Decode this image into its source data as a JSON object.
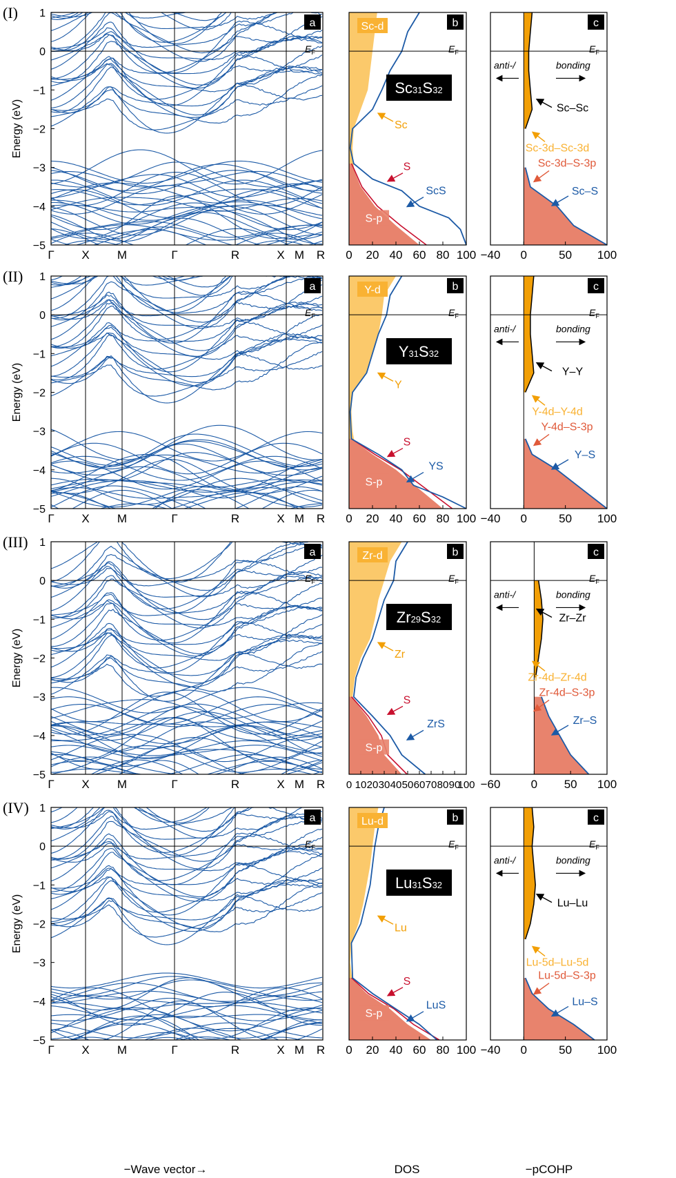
{
  "figure": {
    "x_axis_title_bands": "−Wave vector→",
    "x_axis_title_dos": "DOS",
    "x_axis_title_cohp": "−pCOHP",
    "y_axis_title": "Energy (eV)"
  },
  "colors": {
    "band": "#1c5aa6",
    "total_dos": "#1c5aa6",
    "metal_fill": "#f9b233",
    "metal_fill_light": "#fbc96b",
    "s_fill": "#e8836d",
    "s_line": "#c8102e",
    "bonding_fill": "#f29f05",
    "cohp_total": "#1c5aa6",
    "black": "#000000",
    "label_box": "#000000"
  },
  "panels": [
    {
      "roman": "(I)",
      "formula_base": "Sc",
      "formula_sub1": "31",
      "formula_mid": "S",
      "formula_sub2": "32",
      "metal": "Sc",
      "ef_label": "E",
      "ef_sub": "F",
      "dos_labels": {
        "d": "Sc-d",
        "p": "S-p",
        "metal": "Sc",
        "s": "S",
        "total": "ScS"
      },
      "cohp_labels": {
        "anti": "anti-/",
        "bonding": "bonding",
        "mm": "Sc–Sc",
        "dd": "Sc-3d–Sc-3d",
        "dp": "Sc-3d–S-3p",
        "ms": "Sc–S"
      },
      "letters": {
        "a": "a",
        "b": "b",
        "c": "c"
      },
      "kpoints": [
        "Γ",
        "X",
        "M",
        "Γ",
        "R",
        "X",
        "M",
        "R"
      ],
      "y_ticks": [
        "1",
        "0",
        "−1",
        "−2",
        "−3",
        "−4",
        "−5"
      ],
      "dos_ticks": [
        "0",
        "20",
        "40",
        "60",
        "80",
        "100"
      ],
      "cohp_ticks": [
        "−40",
        "0",
        "50",
        "100"
      ]
    },
    {
      "roman": "(II)",
      "formula_base": "Y",
      "formula_sub1": "31",
      "formula_mid": "S",
      "formula_sub2": "32",
      "metal": "Y",
      "ef_label": "E",
      "ef_sub": "F",
      "dos_labels": {
        "d": "Y-d",
        "p": "S-p",
        "metal": "Y",
        "s": "S",
        "total": "YS"
      },
      "cohp_labels": {
        "anti": "anti-/",
        "bonding": "bonding",
        "mm": "Y–Y",
        "dd": "Y-4d–Y-4d",
        "dp": "Y-4d–S-3p",
        "ms": "Y–S"
      },
      "letters": {
        "a": "a",
        "b": "b",
        "c": "c"
      },
      "kpoints": [
        "Γ",
        "X",
        "M",
        "Γ",
        "R",
        "X",
        "M",
        "R"
      ],
      "y_ticks": [
        "1",
        "0",
        "−1",
        "−2",
        "−3",
        "−4",
        "−5"
      ],
      "dos_ticks": [
        "0",
        "20",
        "40",
        "60",
        "80",
        "100"
      ],
      "cohp_ticks": [
        "−40",
        "0",
        "50",
        "100"
      ]
    },
    {
      "roman": "(III)",
      "formula_base": "Zr",
      "formula_sub1": "29",
      "formula_mid": "S",
      "formula_sub2": "32",
      "metal": "Zr",
      "ef_label": "E",
      "ef_sub": "F",
      "dos_labels": {
        "d": "Zr-d",
        "p": "S-p",
        "metal": "Zr",
        "s": "S",
        "total": "ZrS"
      },
      "cohp_labels": {
        "anti": "anti-/",
        "bonding": "bonding",
        "mm": "Zr–Zr",
        "dd": "Zr-4d–Zr-4d",
        "dp": "Zr-4d–S-3p",
        "ms": "Zr–S"
      },
      "letters": {
        "a": "a",
        "b": "b",
        "c": "c"
      },
      "kpoints": [
        "Γ",
        "X",
        "M",
        "Γ",
        "R",
        "X",
        "M",
        "R"
      ],
      "y_ticks": [
        "1",
        "0",
        "−1",
        "−2",
        "−3",
        "−4",
        "−5"
      ],
      "dos_ticks": [
        "0",
        "10",
        "20",
        "30",
        "40",
        "50",
        "60",
        "70",
        "80",
        "90",
        "100"
      ],
      "cohp_ticks": [
        "−60",
        "0",
        "50",
        "100"
      ]
    },
    {
      "roman": "(IV)",
      "formula_base": "Lu",
      "formula_sub1": "31",
      "formula_mid": "S",
      "formula_sub2": "32",
      "metal": "Lu",
      "ef_label": "E",
      "ef_sub": "F",
      "dos_labels": {
        "d": "Lu-d",
        "p": "S-p",
        "metal": "Lu",
        "s": "S",
        "total": "LuS"
      },
      "cohp_labels": {
        "anti": "anti-/",
        "bonding": "bonding",
        "mm": "Lu–Lu",
        "dd": "Lu-5d–Lu-5d",
        "dp": "Lu-5d–S-3p",
        "ms": "Lu–S"
      },
      "letters": {
        "a": "a",
        "b": "b",
        "c": "c"
      },
      "kpoints": [
        "Γ",
        "X",
        "M",
        "Γ",
        "R",
        "X",
        "M",
        "R"
      ],
      "y_ticks": [
        "1",
        "0",
        "−1",
        "−2",
        "−3",
        "−4",
        "−5"
      ],
      "dos_ticks": [
        "0",
        "20",
        "40",
        "60",
        "80",
        "100"
      ],
      "cohp_ticks": [
        "−40",
        "0",
        "50",
        "100"
      ]
    }
  ],
  "chart_data": [
    {
      "type": "line",
      "subplot": "I-a band structure",
      "xlabel": "−Wave vector→",
      "ylabel": "Energy (eV)",
      "ylim": [
        -5,
        1
      ],
      "categories": [
        "Γ",
        "X",
        "M",
        "Γ",
        "R",
        "X",
        "M",
        "R"
      ],
      "valence_band_top": -2.9,
      "conduction_band_minimum_at_gamma": -2.0
    },
    {
      "type": "area",
      "subplot": "I-b DOS",
      "xlabel": "DOS",
      "xlim": [
        0,
        100
      ],
      "ylim": [
        -5,
        1
      ],
      "series": [
        {
          "name": "Sc-d",
          "y": [
            1,
            0.5,
            0,
            -0.5,
            -1,
            -1.5,
            -2,
            -2.5,
            -3,
            -3.5,
            -4,
            -4.5,
            -5
          ],
          "values": [
            24,
            22,
            20,
            18,
            16,
            10,
            4,
            3,
            4,
            8,
            12,
            16,
            20
          ]
        },
        {
          "name": "S-p",
          "y": [
            -2.9,
            -3.5,
            -4,
            -4.5,
            -5
          ],
          "values": [
            2,
            10,
            22,
            40,
            60
          ]
        },
        {
          "name": "ScS",
          "y": [
            1,
            0.5,
            0,
            -0.5,
            -1,
            -1.5,
            -2,
            -2.5,
            -2.9,
            -3.3,
            -3.6,
            -4,
            -4.3,
            -4.6,
            -5
          ],
          "values": [
            60,
            50,
            45,
            35,
            28,
            20,
            3,
            1,
            4,
            20,
            45,
            60,
            85,
            95,
            100
          ]
        }
      ]
    },
    {
      "type": "area",
      "subplot": "I-c pCOHP",
      "xlabel": "−pCOHP",
      "xlim": [
        -40,
        100
      ],
      "ylim": [
        -5,
        1
      ],
      "series": [
        {
          "name": "Sc–Sc",
          "y": [
            1,
            0.5,
            0,
            -0.5,
            -1,
            -1.5,
            -2
          ],
          "values": [
            10,
            8,
            6,
            6,
            8,
            10,
            2
          ]
        },
        {
          "name": "Sc–S",
          "y": [
            -3,
            -3.5,
            -4,
            -4.5,
            -5
          ],
          "values": [
            2,
            8,
            40,
            60,
            100
          ]
        }
      ]
    },
    {
      "type": "line",
      "subplot": "II-a band structure",
      "xlabel": "−Wave vector→",
      "ylabel": "Energy (eV)",
      "ylim": [
        -5,
        1
      ],
      "categories": [
        "Γ",
        "X",
        "M",
        "Γ",
        "R",
        "X",
        "M",
        "R"
      ],
      "valence_band_top": -3.2,
      "conduction_band_minimum_at_gamma": -2.1
    },
    {
      "type": "area",
      "subplot": "II-b DOS",
      "xlabel": "DOS",
      "xlim": [
        0,
        100
      ],
      "ylim": [
        -5,
        1
      ],
      "series": [
        {
          "name": "Y-d",
          "y": [
            1,
            0.5,
            0,
            -0.5,
            -1,
            -1.5,
            -2,
            -2.5,
            -3,
            -3.5,
            -4,
            -4.5,
            -5
          ],
          "values": [
            40,
            30,
            28,
            25,
            20,
            15,
            3,
            2,
            3,
            6,
            10,
            14,
            18
          ]
        },
        {
          "name": "S-p",
          "y": [
            -3.2,
            -3.6,
            -4,
            -4.5,
            -5
          ],
          "values": [
            2,
            20,
            40,
            60,
            80
          ]
        },
        {
          "name": "YS",
          "y": [
            1,
            0.5,
            0,
            -0.5,
            -1,
            -1.5,
            -2,
            -2.5,
            -3.2,
            -3.6,
            -4,
            -4.4,
            -4.7,
            -5
          ],
          "values": [
            45,
            35,
            32,
            25,
            20,
            15,
            3,
            1,
            2,
            25,
            45,
            55,
            80,
            100
          ]
        }
      ]
    },
    {
      "type": "area",
      "subplot": "II-c pCOHP",
      "xlabel": "−pCOHP",
      "xlim": [
        -40,
        100
      ],
      "ylim": [
        -5,
        1
      ],
      "series": [
        {
          "name": "Y–Y",
          "y": [
            1,
            0.5,
            0,
            -0.5,
            -1,
            -1.5,
            -2
          ],
          "values": [
            12,
            10,
            8,
            8,
            10,
            12,
            2
          ]
        },
        {
          "name": "Y–S",
          "y": [
            -3.2,
            -3.6,
            -4,
            -4.5,
            -5
          ],
          "values": [
            2,
            10,
            40,
            70,
            100
          ]
        }
      ]
    },
    {
      "type": "line",
      "subplot": "III-a band structure",
      "xlabel": "−Wave vector→",
      "ylabel": "Energy (eV)",
      "ylim": [
        -5,
        1
      ],
      "categories": [
        "Γ",
        "X",
        "M",
        "Γ",
        "R",
        "X",
        "M",
        "R"
      ],
      "valence_band_top": -3.0,
      "conduction_band_minimum_at_gamma": -3.0
    },
    {
      "type": "area",
      "subplot": "III-b DOS",
      "xlabel": "DOS",
      "xlim": [
        0,
        100
      ],
      "ylim": [
        -5,
        1
      ],
      "series": [
        {
          "name": "Zr-d",
          "y": [
            1,
            0.5,
            0,
            -0.5,
            -1,
            -1.5,
            -2,
            -2.5,
            -3,
            -3.5,
            -4,
            -4.5,
            -5
          ],
          "values": [
            45,
            35,
            30,
            25,
            22,
            18,
            10,
            5,
            3,
            5,
            8,
            10,
            14
          ]
        },
        {
          "name": "S-p",
          "y": [
            -3,
            -3.5,
            -4,
            -4.5,
            -5
          ],
          "values": [
            2,
            15,
            25,
            30,
            45
          ]
        },
        {
          "name": "ZrS",
          "y": [
            1,
            0.5,
            0,
            -0.5,
            -1,
            -1.5,
            -2,
            -2.5,
            -3,
            -3.5,
            -4,
            -4.5,
            -5
          ],
          "values": [
            50,
            40,
            38,
            30,
            25,
            20,
            12,
            6,
            4,
            20,
            35,
            45,
            65
          ]
        }
      ]
    },
    {
      "type": "area",
      "subplot": "III-c pCOHP",
      "xlabel": "−pCOHP",
      "xlim": [
        -60,
        100
      ],
      "ylim": [
        -5,
        1
      ],
      "series": [
        {
          "name": "Zr–Zr",
          "y": [
            0,
            -0.5,
            -1,
            -1.5,
            -2,
            -2.5
          ],
          "values": [
            6,
            10,
            12,
            10,
            6,
            2
          ]
        },
        {
          "name": "Zr–S",
          "y": [
            -3,
            -3.5,
            -4,
            -4.5,
            -5
          ],
          "values": [
            10,
            20,
            35,
            50,
            75
          ]
        }
      ]
    },
    {
      "type": "line",
      "subplot": "IV-a band structure",
      "xlabel": "−Wave vector→",
      "ylabel": "Energy (eV)",
      "ylim": [
        -5,
        1
      ],
      "categories": [
        "Γ",
        "X",
        "M",
        "Γ",
        "R",
        "X",
        "M",
        "R"
      ],
      "valence_band_top": -3.4,
      "conduction_band_minimum_at_gamma": -2.4
    },
    {
      "type": "area",
      "subplot": "IV-b DOS",
      "xlabel": "DOS",
      "xlim": [
        0,
        100
      ],
      "ylim": [
        -5,
        1
      ],
      "series": [
        {
          "name": "Lu-d",
          "y": [
            1,
            0.5,
            0,
            -0.5,
            -1,
            -1.5,
            -2,
            -2.5,
            -3,
            -3.5,
            -4,
            -4.5,
            -5
          ],
          "values": [
            25,
            22,
            20,
            18,
            15,
            12,
            8,
            2,
            1,
            3,
            8,
            12,
            16
          ]
        },
        {
          "name": "S-p",
          "y": [
            -3.4,
            -3.8,
            -4.2,
            -4.6,
            -5
          ],
          "values": [
            2,
            15,
            35,
            50,
            70
          ]
        },
        {
          "name": "LuS",
          "y": [
            1,
            0.5,
            0,
            -0.5,
            -1,
            -1.5,
            -2,
            -2.5,
            -3.4,
            -3.8,
            -4.2,
            -4.6,
            -5
          ],
          "values": [
            30,
            25,
            22,
            20,
            18,
            14,
            10,
            2,
            3,
            20,
            40,
            60,
            75
          ]
        }
      ]
    },
    {
      "type": "area",
      "subplot": "IV-c pCOHP",
      "xlabel": "−pCOHP",
      "xlim": [
        -40,
        100
      ],
      "ylim": [
        -5,
        1
      ],
      "series": [
        {
          "name": "Lu–Lu",
          "y": [
            1,
            0.5,
            0,
            -0.5,
            -1,
            -1.5,
            -2,
            -2.4
          ],
          "values": [
            10,
            12,
            10,
            12,
            14,
            12,
            8,
            2
          ]
        },
        {
          "name": "Lu–S",
          "y": [
            -3.4,
            -3.8,
            -4.2,
            -4.6,
            -5
          ],
          "values": [
            2,
            10,
            30,
            60,
            85
          ]
        }
      ]
    }
  ]
}
